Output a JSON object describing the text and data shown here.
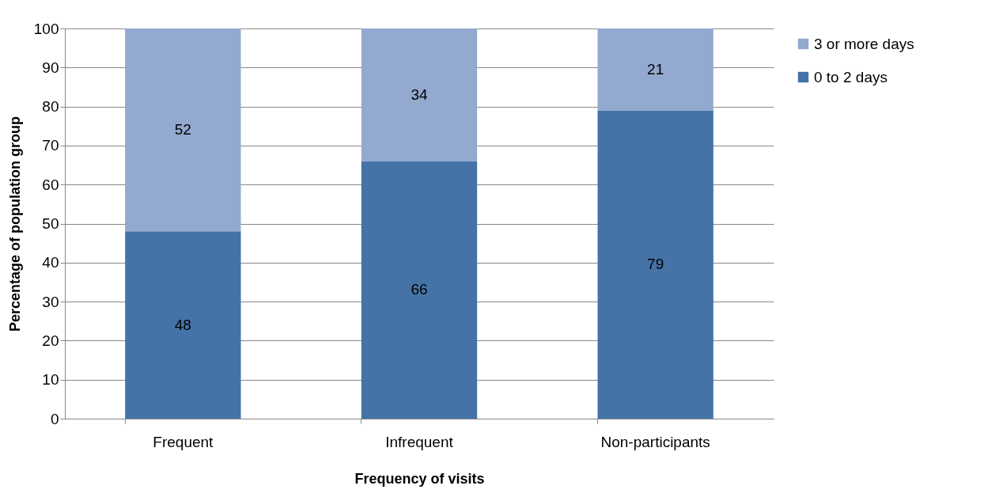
{
  "chart_data": {
    "type": "bar",
    "stacked": true,
    "xlabel": "Frequency of visits",
    "ylabel": "Percentage of population group",
    "categories": [
      "Frequent",
      "Infrequent",
      "Non-participants"
    ],
    "series": [
      {
        "name": "0 to 2 days",
        "color": "#4573a7",
        "values": [
          48,
          66,
          79
        ]
      },
      {
        "name": "3 or more days",
        "color": "#94a9d0",
        "values": [
          52,
          34,
          21
        ]
      }
    ],
    "ylim": [
      0,
      100
    ],
    "yticks": [
      0,
      10,
      20,
      30,
      40,
      50,
      60,
      70,
      80,
      90,
      100
    ],
    "grid": "y",
    "legend": "right",
    "data_labels": true
  }
}
